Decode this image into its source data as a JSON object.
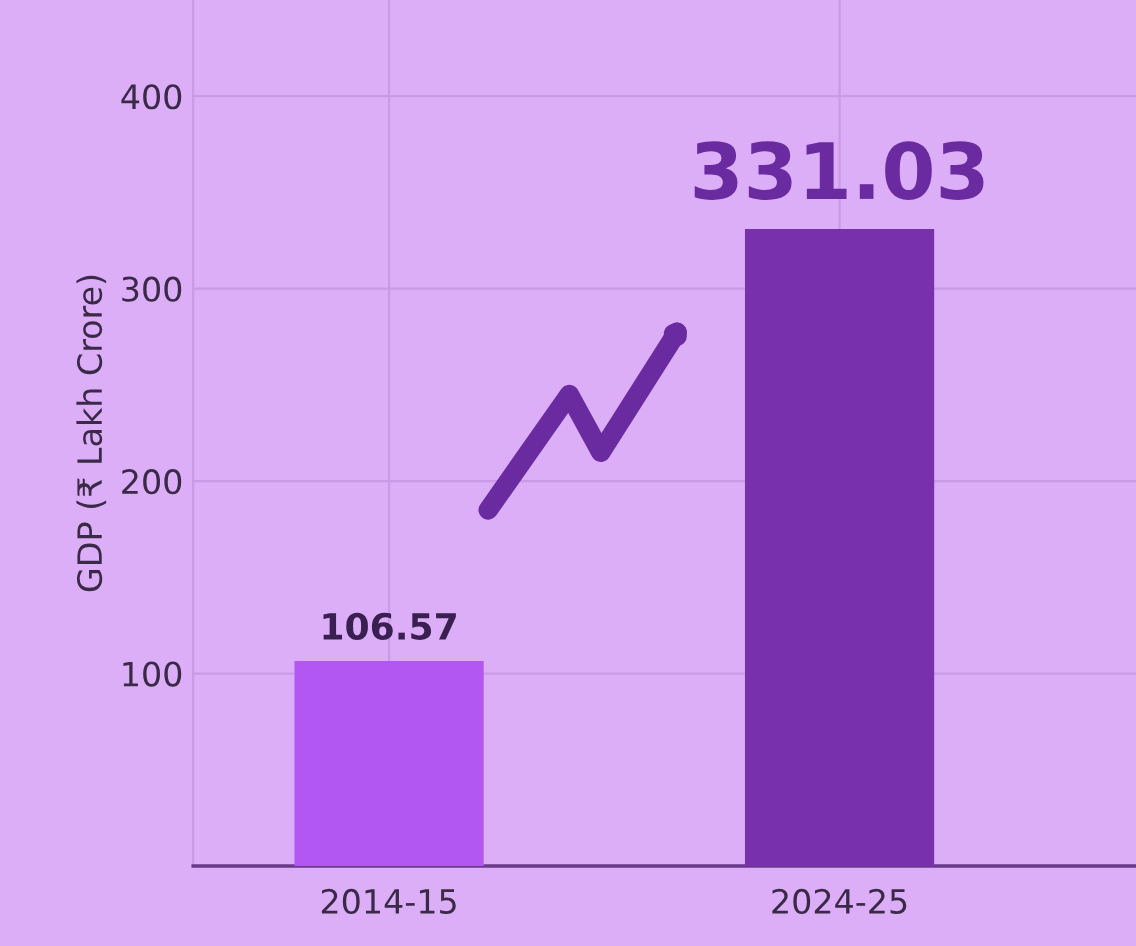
{
  "chart_data": {
    "type": "bar",
    "ylabel": "GDP (₹ Lakh Crore)",
    "categories": [
      "2014-15",
      "2024-25"
    ],
    "values": [
      106.57,
      331.03
    ],
    "colors": [
      "#b257f2",
      "#7830ad"
    ],
    "value_labels": [
      "106.57",
      "331.03"
    ],
    "ylim": [
      0,
      450
    ],
    "yticks": [
      100,
      200,
      300,
      400
    ],
    "grid": true,
    "legend": false
  }
}
